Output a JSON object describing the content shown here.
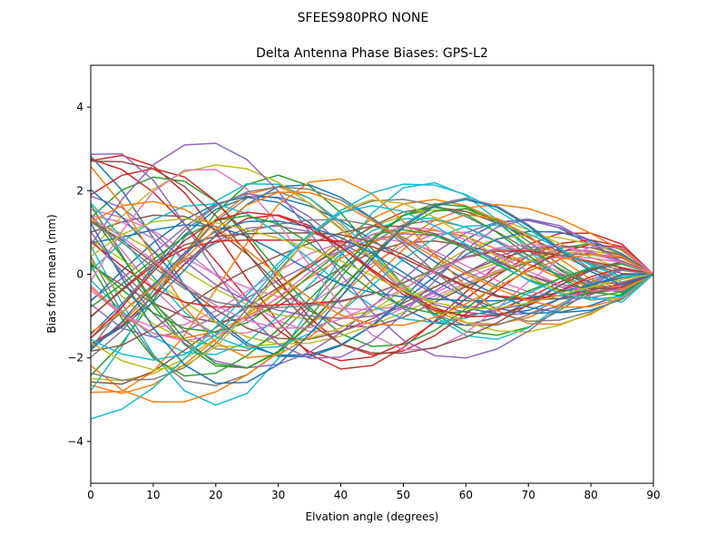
{
  "chart_data": {
    "type": "line",
    "suptitle": "SFEES980PRO     NONE",
    "title": "Delta Antenna Phase Biases: GPS-L2",
    "xlabel": "Elvation angle (degrees)",
    "ylabel": "Bias from mean (mm)",
    "xlim": [
      0,
      90
    ],
    "ylim": [
      -5,
      5
    ],
    "x_ticks": [
      "0",
      "10",
      "20",
      "30",
      "40",
      "50",
      "60",
      "70",
      "80",
      "90"
    ],
    "y_ticks": [
      "−4",
      "−2",
      "0",
      "2",
      "4"
    ],
    "grid": false,
    "x": [
      0,
      5,
      10,
      15,
      20,
      25,
      30,
      35,
      40,
      45,
      50,
      55,
      60,
      65,
      70,
      75,
      80,
      85,
      90
    ],
    "series_count": 72,
    "colors": [
      "#1f77b4",
      "#ff7f0e",
      "#2ca02c",
      "#d62728",
      "#9467bd",
      "#8c564b",
      "#e377c2",
      "#7f7f7f",
      "#bcbd22",
      "#17becf"
    ],
    "generator": {
      "amplitude_range": [
        1.0,
        3.6
      ],
      "phase_range": [
        0,
        6.283
      ]
    }
  }
}
